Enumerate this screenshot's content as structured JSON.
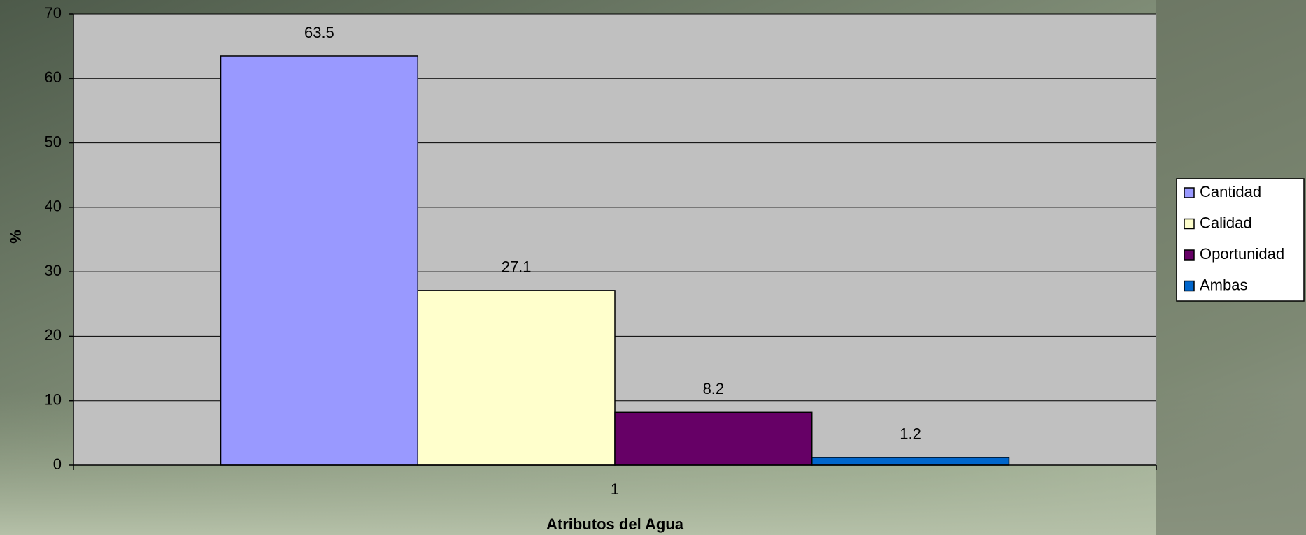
{
  "chart_data": {
    "type": "bar",
    "categories": [
      "1"
    ],
    "series": [
      {
        "name": "Cantidad",
        "color": "#9999ff",
        "values": [
          63.5
        ]
      },
      {
        "name": "Calidad",
        "color": "#ffffcc",
        "values": [
          27.1
        ]
      },
      {
        "name": "Oportunidad",
        "color": "#660066",
        "values": [
          8.2
        ]
      },
      {
        "name": "Ambas",
        "color": "#0066cc",
        "values": [
          1.2
        ]
      }
    ],
    "x_label": "Atributos del Agua",
    "y_label": "%",
    "ylim": [
      0,
      70
    ],
    "yticks": [
      0,
      10,
      20,
      30,
      40,
      50,
      60,
      70
    ],
    "grid": true,
    "legend": "right"
  }
}
